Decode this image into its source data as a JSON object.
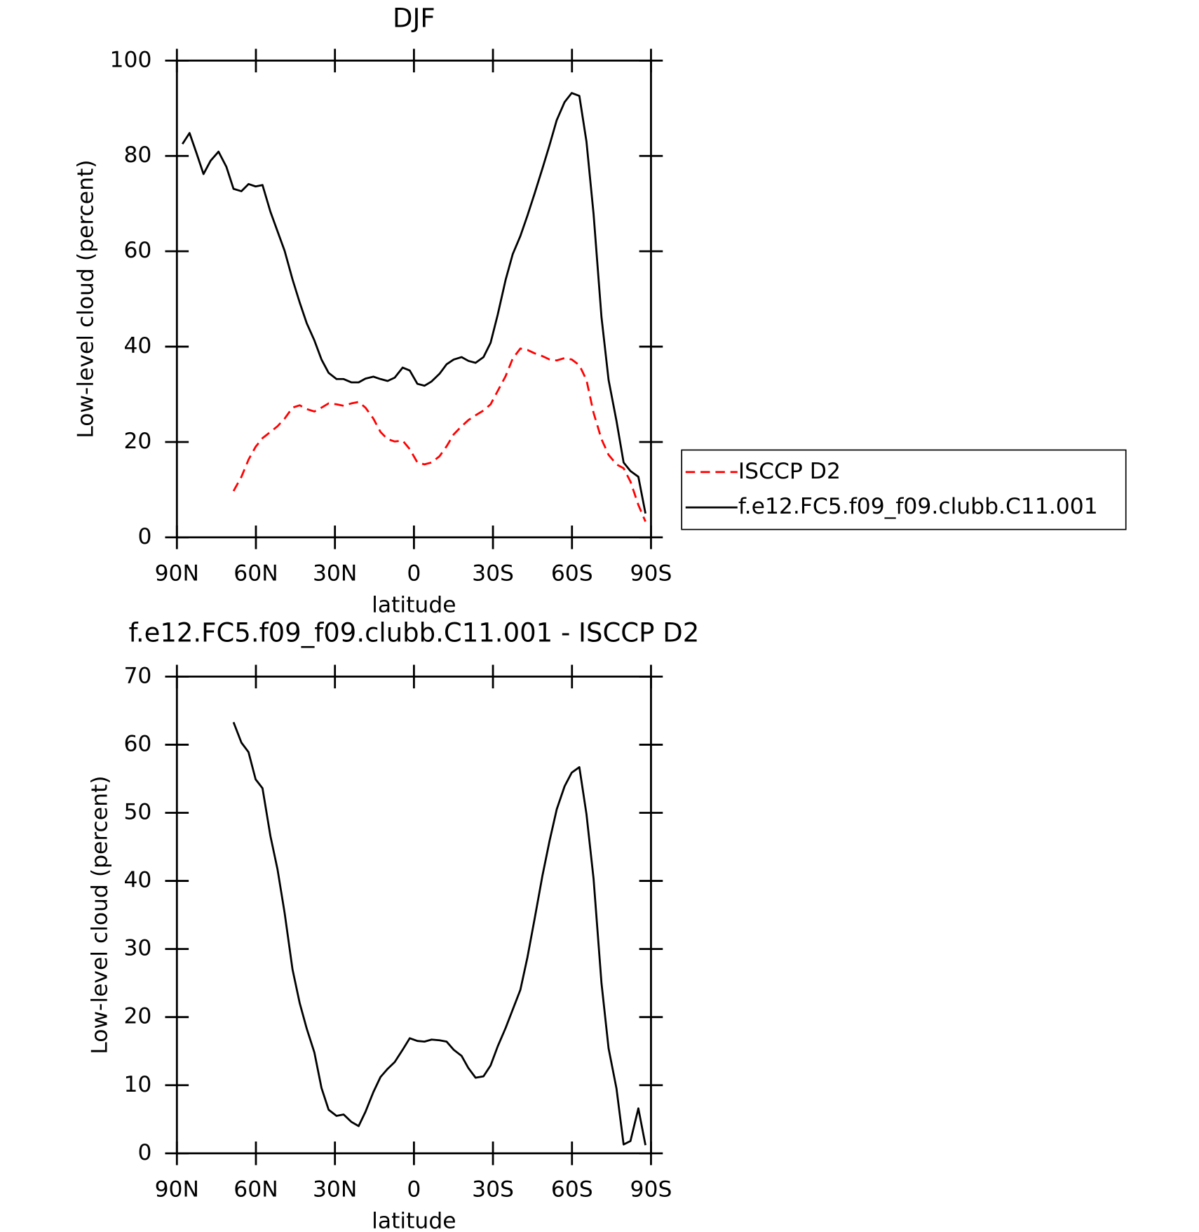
{
  "chart_data": [
    {
      "type": "line",
      "title": "DJF",
      "xlabel": "latitude",
      "ylabel": "Low-level cloud (percent)",
      "x": [
        87.9,
        85.2,
        82.5,
        79.9,
        77.2,
        74.2,
        71.2,
        68.5,
        65.5,
        62.8,
        60.1,
        57.5,
        54.5,
        51.8,
        49.1,
        46.1,
        43.4,
        40.7,
        37.8,
        35.1,
        32.4,
        29.4,
        26.7,
        23.7,
        21.0,
        18.4,
        15.4,
        12.7,
        10.0,
        7.3,
        4.3,
        1.6,
        -1.3,
        -4.0,
        -6.7,
        -9.7,
        -12.4,
        -15.1,
        -18.1,
        -20.7,
        -23.4,
        -26.4,
        -29.1,
        -31.8,
        -34.8,
        -37.5,
        -40.4,
        -43.1,
        -45.8,
        -48.8,
        -51.5,
        -54.2,
        -57.2,
        -59.9,
        -62.8,
        -65.5,
        -68.2,
        -71.2,
        -73.9,
        -76.9,
        -79.6,
        -82.2,
        -85.2,
        -87.9
      ],
      "series": [
        {
          "name": "ISCCP D2",
          "color": "#ff0000",
          "dashed": true,
          "values": [
            null,
            null,
            null,
            null,
            null,
            null,
            null,
            9.7,
            12.7,
            16.3,
            19.0,
            20.8,
            22.1,
            23.3,
            24.9,
            27.2,
            27.7,
            26.9,
            26.4,
            27.2,
            28.1,
            27.9,
            27.6,
            28.1,
            28.4,
            27.2,
            24.9,
            22.1,
            20.6,
            20.1,
            20.3,
            18.5,
            15.7,
            15.3,
            15.7,
            17.0,
            19.1,
            21.6,
            23.3,
            24.6,
            25.6,
            26.6,
            27.9,
            30.7,
            33.8,
            37.5,
            39.6,
            39.3,
            38.6,
            38.0,
            37.3,
            37.1,
            37.6,
            37.3,
            36.1,
            33.0,
            26.1,
            20.6,
            17.3,
            15.3,
            14.5,
            11.7,
            6.8,
            3.3
          ]
        },
        {
          "name": "f.e12.FC5.f09_f09.clubb.C11.001",
          "color": "#000000",
          "dashed": false,
          "values": [
            82.5,
            84.8,
            80.5,
            76.2,
            79.0,
            80.9,
            77.7,
            73.1,
            72.6,
            74.1,
            73.6,
            73.9,
            68.3,
            64.2,
            60.1,
            54.1,
            49.3,
            44.9,
            41.3,
            37.3,
            34.5,
            33.2,
            33.2,
            32.5,
            32.5,
            33.3,
            33.7,
            33.2,
            32.8,
            33.5,
            35.6,
            35.0,
            32.2,
            31.8,
            32.7,
            34.3,
            36.3,
            37.3,
            37.8,
            37.0,
            36.6,
            37.8,
            40.8,
            46.7,
            54.0,
            59.4,
            63.2,
            67.5,
            72.1,
            77.4,
            82.3,
            87.5,
            91.3,
            93.2,
            92.6,
            83.0,
            67.8,
            46.2,
            33.0,
            24.4,
            15.7,
            13.9,
            12.7,
            5.0
          ]
        }
      ],
      "xlim": [
        90,
        -90
      ],
      "xticks": [
        {
          "value": 90,
          "label": "90N"
        },
        {
          "value": 60,
          "label": "60N"
        },
        {
          "value": 30,
          "label": "30N"
        },
        0,
        {
          "value": -30,
          "label": "30S"
        },
        {
          "value": -60,
          "label": "60S"
        },
        {
          "value": -90,
          "label": "90S"
        }
      ],
      "ylim": [
        0,
        100
      ],
      "yticks": [
        0,
        20,
        40,
        60,
        80,
        100
      ],
      "legend": "right"
    },
    {
      "type": "line",
      "title": "f.e12.FC5.f09_f09.clubb.C11.001 - ISCCP D2",
      "xlabel": "latitude",
      "ylabel": "Low-level cloud (percent)",
      "x": [
        87.9,
        85.2,
        82.5,
        79.9,
        77.2,
        74.2,
        71.2,
        68.5,
        65.5,
        62.8,
        60.1,
        57.5,
        54.5,
        51.8,
        49.1,
        46.1,
        43.4,
        40.7,
        37.8,
        35.1,
        32.4,
        29.4,
        26.7,
        23.7,
        21.0,
        18.4,
        15.4,
        12.7,
        10.0,
        7.3,
        4.3,
        1.6,
        -1.3,
        -4.0,
        -6.7,
        -9.7,
        -12.4,
        -15.1,
        -18.1,
        -20.7,
        -23.4,
        -26.4,
        -29.1,
        -31.8,
        -34.8,
        -37.5,
        -40.4,
        -43.1,
        -45.8,
        -48.8,
        -51.5,
        -54.2,
        -57.2,
        -59.9,
        -62.8,
        -65.5,
        -68.2,
        -71.2,
        -73.9,
        -76.9,
        -79.6,
        -82.2,
        -85.2,
        -87.9
      ],
      "values": [
        null,
        null,
        null,
        null,
        null,
        null,
        null,
        63.3,
        60.3,
        58.9,
        54.9,
        53.6,
        46.6,
        41.7,
        35.3,
        27.0,
        22.1,
        18.3,
        14.8,
        9.6,
        6.4,
        5.5,
        5.7,
        4.6,
        4.0,
        6.1,
        9.0,
        11.2,
        12.4,
        13.4,
        15.2,
        16.9,
        16.5,
        16.4,
        16.7,
        16.6,
        16.4,
        15.2,
        14.3,
        12.5,
        11.1,
        11.3,
        12.9,
        15.7,
        18.4,
        21.1,
        24.0,
        28.8,
        34.4,
        40.8,
        45.9,
        50.5,
        53.9,
        55.9,
        56.7,
        49.8,
        40.3,
        25.0,
        15.4,
        9.5,
        1.3,
        1.8,
        6.6,
        1.2
      ],
      "color": "#000000",
      "xlim": [
        90,
        -90
      ],
      "xticks": [
        {
          "value": 90,
          "label": "90N"
        },
        {
          "value": 60,
          "label": "60N"
        },
        {
          "value": 30,
          "label": "30N"
        },
        0,
        {
          "value": -30,
          "label": "30S"
        },
        {
          "value": -60,
          "label": "60S"
        },
        {
          "value": -90,
          "label": "90S"
        }
      ],
      "ylim": [
        0,
        70
      ],
      "yticks": [
        0,
        10,
        20,
        30,
        40,
        50,
        60,
        70
      ]
    }
  ]
}
